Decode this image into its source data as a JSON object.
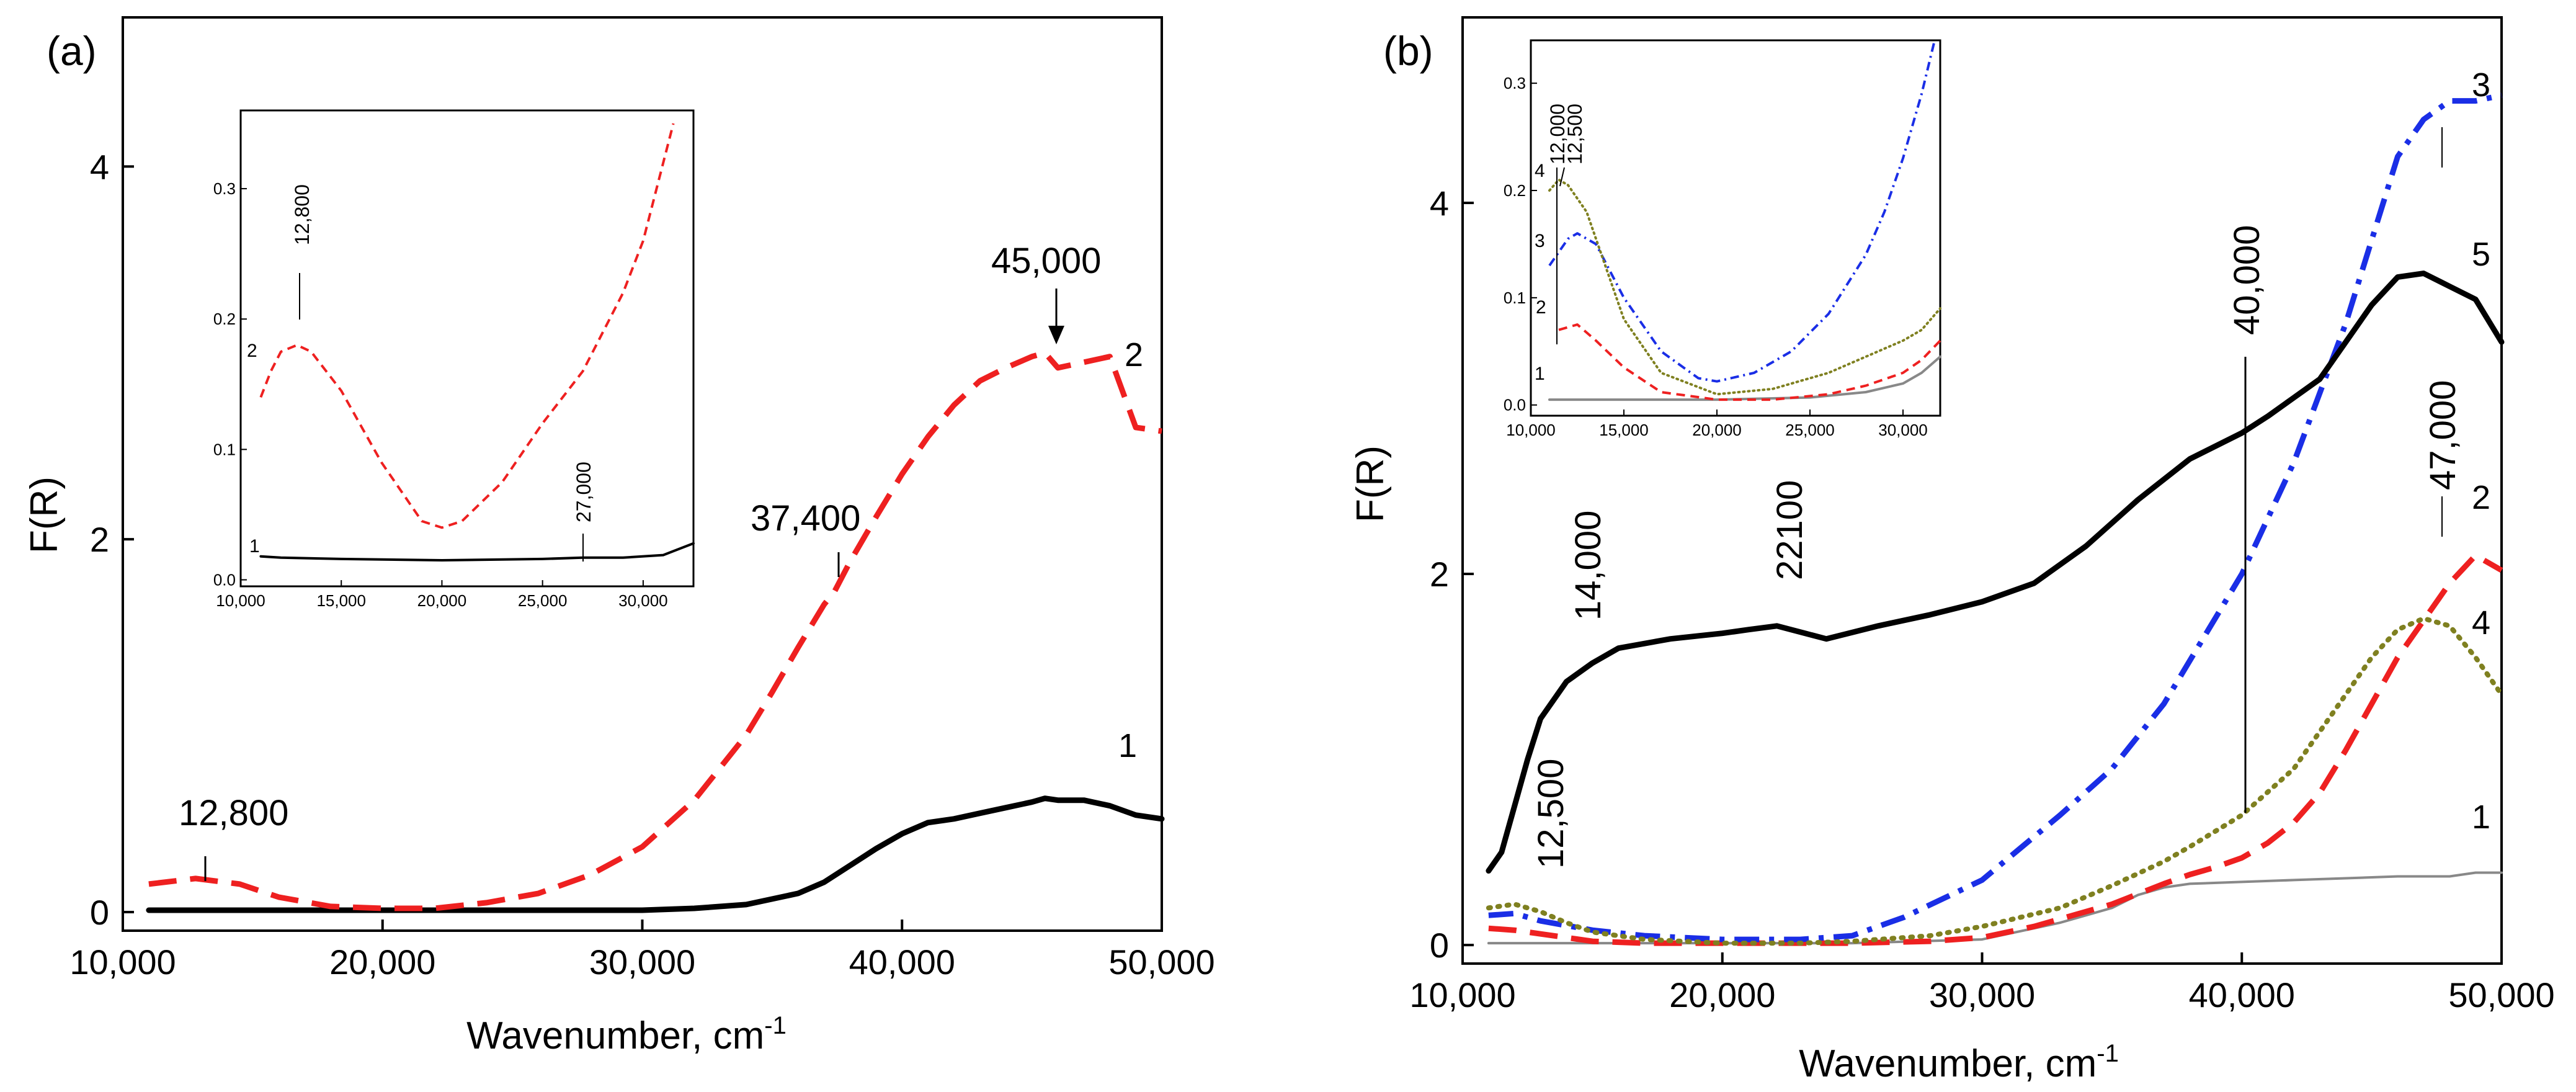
{
  "chart_data": [
    {
      "id": "a",
      "type": "line",
      "panel_label": "(a)",
      "xlabel": "Wavenumber, cm",
      "xlabel_sup": "-1",
      "ylabel": "F(R)",
      "xlim": [
        10000,
        50000
      ],
      "ylim": [
        -0.1,
        4.8
      ],
      "xticks": [
        10000,
        20000,
        30000,
        40000,
        50000
      ],
      "xtick_labels": [
        "10,000",
        "20,000",
        "30,000",
        "40,000",
        "50,000"
      ],
      "yticks": [
        0,
        2,
        4
      ],
      "ytick_labels": [
        "0",
        "2",
        "4"
      ],
      "series": [
        {
          "name": "1",
          "color": "#000000",
          "style": "solid",
          "x": [
            11000,
            15000,
            20000,
            25000,
            30000,
            32000,
            34000,
            36000,
            37000,
            38000,
            39000,
            40000,
            41000,
            42000,
            43000,
            44000,
            45000,
            45500,
            46000,
            47000,
            48000,
            49000,
            50000
          ],
          "y": [
            0.01,
            0.01,
            0.01,
            0.01,
            0.01,
            0.02,
            0.04,
            0.1,
            0.16,
            0.25,
            0.34,
            0.42,
            0.48,
            0.5,
            0.53,
            0.56,
            0.59,
            0.61,
            0.6,
            0.6,
            0.57,
            0.52,
            0.5
          ]
        },
        {
          "name": "2",
          "color": "#ee2020",
          "style": "dashed",
          "x": [
            11000,
            12800,
            14500,
            16000,
            18000,
            20000,
            22000,
            24000,
            26000,
            28000,
            30000,
            32000,
            34000,
            35000,
            36000,
            37000,
            37400,
            38000,
            39000,
            40000,
            41000,
            42000,
            43000,
            44000,
            45000,
            45500,
            46000,
            47000,
            48000,
            49000,
            50000
          ],
          "y": [
            0.15,
            0.18,
            0.15,
            0.08,
            0.03,
            0.02,
            0.02,
            0.05,
            0.1,
            0.2,
            0.35,
            0.6,
            0.95,
            1.18,
            1.42,
            1.65,
            1.72,
            1.88,
            2.12,
            2.35,
            2.55,
            2.72,
            2.85,
            2.92,
            2.98,
            3.0,
            2.92,
            2.95,
            2.98,
            2.6,
            2.58
          ]
        }
      ],
      "annotations": [
        "12,800",
        "37,400",
        "45,000"
      ],
      "curve_labels": [
        "1",
        "2"
      ],
      "inset": {
        "xlim": [
          10000,
          32500
        ],
        "ylim": [
          -0.005,
          0.36
        ],
        "xticks": [
          10000,
          15000,
          20000,
          25000,
          30000
        ],
        "xtick_labels": [
          "10,000",
          "15,000",
          "20,000",
          "25,000",
          "30,000"
        ],
        "yticks": [
          0.0,
          0.1,
          0.2,
          0.3
        ],
        "ytick_labels": [
          "0.0",
          "0.1",
          "0.2",
          "0.3"
        ],
        "series": [
          {
            "name": "1",
            "color": "#000000",
            "style": "solid",
            "x": [
              11000,
              12000,
              15000,
              20000,
              25000,
              27000,
              29000,
              31000,
              32500
            ],
            "y": [
              0.018,
              0.017,
              0.016,
              0.015,
              0.016,
              0.017,
              0.017,
              0.019,
              0.028
            ]
          },
          {
            "name": "2",
            "color": "#ee2020",
            "style": "dashed",
            "x": [
              11000,
              11500,
              12000,
              12800,
              13500,
              15000,
              17000,
              19000,
              20000,
              21000,
              23000,
              25000,
              27000,
              29000,
              30000,
              31000,
              31500
            ],
            "y": [
              0.14,
              0.16,
              0.175,
              0.18,
              0.175,
              0.145,
              0.09,
              0.045,
              0.04,
              0.045,
              0.075,
              0.12,
              0.16,
              0.22,
              0.26,
              0.32,
              0.35
            ]
          }
        ],
        "annotations": [
          "12,800",
          "27,000"
        ],
        "curve_labels": [
          "1",
          "2"
        ]
      }
    },
    {
      "id": "b",
      "type": "line",
      "panel_label": "(b)",
      "xlabel": "Wavenumber, cm",
      "xlabel_sup": "-1",
      "ylabel": "F(R)",
      "xlim": [
        10000,
        50000
      ],
      "ylim": [
        -0.1,
        5.0
      ],
      "xticks": [
        10000,
        20000,
        30000,
        40000,
        50000
      ],
      "xtick_labels": [
        "10,000",
        "20,000",
        "30,000",
        "40,000",
        "50,000"
      ],
      "yticks": [
        0,
        2,
        4
      ],
      "ytick_labels": [
        "0",
        "2",
        "4"
      ],
      "series": [
        {
          "name": "1",
          "color": "#888888",
          "style": "solid-thin",
          "x": [
            11000,
            15000,
            20000,
            25000,
            30000,
            33000,
            35000,
            36000,
            37000,
            38000,
            40000,
            42000,
            44000,
            46000,
            48000,
            49000,
            50000
          ],
          "y": [
            0.01,
            0.01,
            0.01,
            0.01,
            0.03,
            0.12,
            0.2,
            0.27,
            0.31,
            0.33,
            0.34,
            0.35,
            0.36,
            0.37,
            0.37,
            0.39,
            0.39
          ]
        },
        {
          "name": "2",
          "color": "#ee2020",
          "style": "dashed",
          "x": [
            11000,
            12000,
            13000,
            15000,
            17000,
            20000,
            25000,
            28000,
            30000,
            32000,
            35000,
            37000,
            38000,
            39000,
            40000,
            41000,
            42000,
            43000,
            44000,
            45000,
            46000,
            47000,
            48000,
            49000,
            50000
          ],
          "y": [
            0.09,
            0.08,
            0.06,
            0.02,
            0.01,
            0.01,
            0.01,
            0.02,
            0.04,
            0.1,
            0.22,
            0.33,
            0.38,
            0.42,
            0.47,
            0.55,
            0.66,
            0.82,
            1.05,
            1.3,
            1.55,
            1.75,
            1.95,
            2.1,
            2.02
          ]
        },
        {
          "name": "3",
          "color": "#1a2ee6",
          "style": "dashdot",
          "x": [
            11000,
            12000,
            13000,
            15000,
            17000,
            20000,
            23000,
            25000,
            27000,
            30000,
            33000,
            35000,
            37000,
            40000,
            42000,
            44000,
            45000,
            46000,
            47000,
            48000,
            49000,
            50000
          ],
          "y": [
            0.16,
            0.17,
            0.13,
            0.08,
            0.05,
            0.03,
            0.03,
            0.05,
            0.15,
            0.35,
            0.7,
            0.95,
            1.3,
            2.0,
            2.6,
            3.35,
            3.8,
            4.25,
            4.45,
            4.55,
            4.55,
            4.58
          ]
        },
        {
          "name": "4",
          "color": "#7f8020",
          "style": "dotted",
          "x": [
            11000,
            12000,
            13000,
            14000,
            15000,
            17000,
            20000,
            23000,
            25000,
            28000,
            30000,
            33000,
            35000,
            37000,
            38000,
            40000,
            42000,
            43000,
            44000,
            45000,
            46000,
            47000,
            48000,
            49000,
            50000
          ],
          "y": [
            0.2,
            0.22,
            0.18,
            0.12,
            0.07,
            0.03,
            0.01,
            0.01,
            0.02,
            0.05,
            0.1,
            0.2,
            0.32,
            0.45,
            0.53,
            0.7,
            0.95,
            1.15,
            1.35,
            1.55,
            1.7,
            1.76,
            1.72,
            1.55,
            1.35
          ]
        },
        {
          "name": "5",
          "color": "#000000",
          "style": "solid",
          "x": [
            11000,
            11500,
            12000,
            12500,
            13000,
            14000,
            15000,
            16000,
            18000,
            20000,
            21000,
            22100,
            24000,
            26000,
            28000,
            30000,
            32000,
            34000,
            36000,
            38000,
            40000,
            41000,
            42000,
            43000,
            44000,
            45000,
            46000,
            47000,
            48000,
            49000,
            50000
          ],
          "y": [
            0.4,
            0.5,
            0.75,
            1.0,
            1.22,
            1.42,
            1.52,
            1.6,
            1.65,
            1.68,
            1.7,
            1.72,
            1.65,
            1.72,
            1.78,
            1.85,
            1.95,
            2.15,
            2.4,
            2.62,
            2.76,
            2.85,
            2.95,
            3.05,
            3.25,
            3.45,
            3.6,
            3.62,
            3.55,
            3.48,
            3.25
          ]
        }
      ],
      "annotations": [
        "12,500",
        "14,000",
        "22100",
        "40,000",
        "47,000"
      ],
      "curve_labels": [
        "1",
        "2",
        "3",
        "4",
        "5"
      ],
      "inset": {
        "xlim": [
          10000,
          32000
        ],
        "ylim": [
          -0.01,
          0.34
        ],
        "xticks": [
          10000,
          15000,
          20000,
          25000,
          30000
        ],
        "xtick_labels": [
          "10,000",
          "15,000",
          "20,000",
          "25,000",
          "30,000"
        ],
        "yticks": [
          0.0,
          0.1,
          0.2,
          0.3
        ],
        "ytick_labels": [
          "0.0",
          "0.1",
          "0.2",
          "0.3"
        ],
        "series": [
          {
            "name": "1",
            "color": "#888888",
            "style": "solid",
            "x": [
              11000,
              15000,
              20000,
              25000,
              28000,
              30000,
              31000,
              32000
            ],
            "y": [
              0.005,
              0.005,
              0.005,
              0.007,
              0.012,
              0.02,
              0.03,
              0.045
            ]
          },
          {
            "name": "2",
            "color": "#ee2020",
            "style": "dashed",
            "x": [
              11500,
              12500,
              13500,
              15000,
              17000,
              20000,
              23000,
              26000,
              28000,
              30000,
              31000,
              32000
            ],
            "y": [
              0.07,
              0.075,
              0.06,
              0.035,
              0.012,
              0.005,
              0.005,
              0.01,
              0.018,
              0.03,
              0.042,
              0.06
            ]
          },
          {
            "name": "3",
            "color": "#1a2ee6",
            "style": "dashdot",
            "x": [
              11000,
              12000,
              12500,
              13500,
              15000,
              17000,
              19000,
              20000,
              22000,
              24000,
              26000,
              28000,
              29000,
              30000,
              31000,
              31700
            ],
            "y": [
              0.13,
              0.155,
              0.16,
              0.15,
              0.1,
              0.05,
              0.025,
              0.022,
              0.03,
              0.05,
              0.085,
              0.14,
              0.18,
              0.23,
              0.29,
              0.34
            ]
          },
          {
            "name": "4",
            "color": "#7f8020",
            "style": "dotted",
            "x": [
              11000,
              11500,
              12000,
              13000,
              14000,
              15000,
              17000,
              20000,
              23000,
              26000,
              28000,
              30000,
              31000,
              32000
            ],
            "y": [
              0.2,
              0.21,
              0.205,
              0.18,
              0.13,
              0.08,
              0.03,
              0.01,
              0.015,
              0.03,
              0.045,
              0.06,
              0.07,
              0.09
            ]
          }
        ],
        "annotations": [
          "12,000",
          "12,500"
        ],
        "curve_labels": [
          "1",
          "2",
          "3",
          "4"
        ]
      }
    }
  ]
}
